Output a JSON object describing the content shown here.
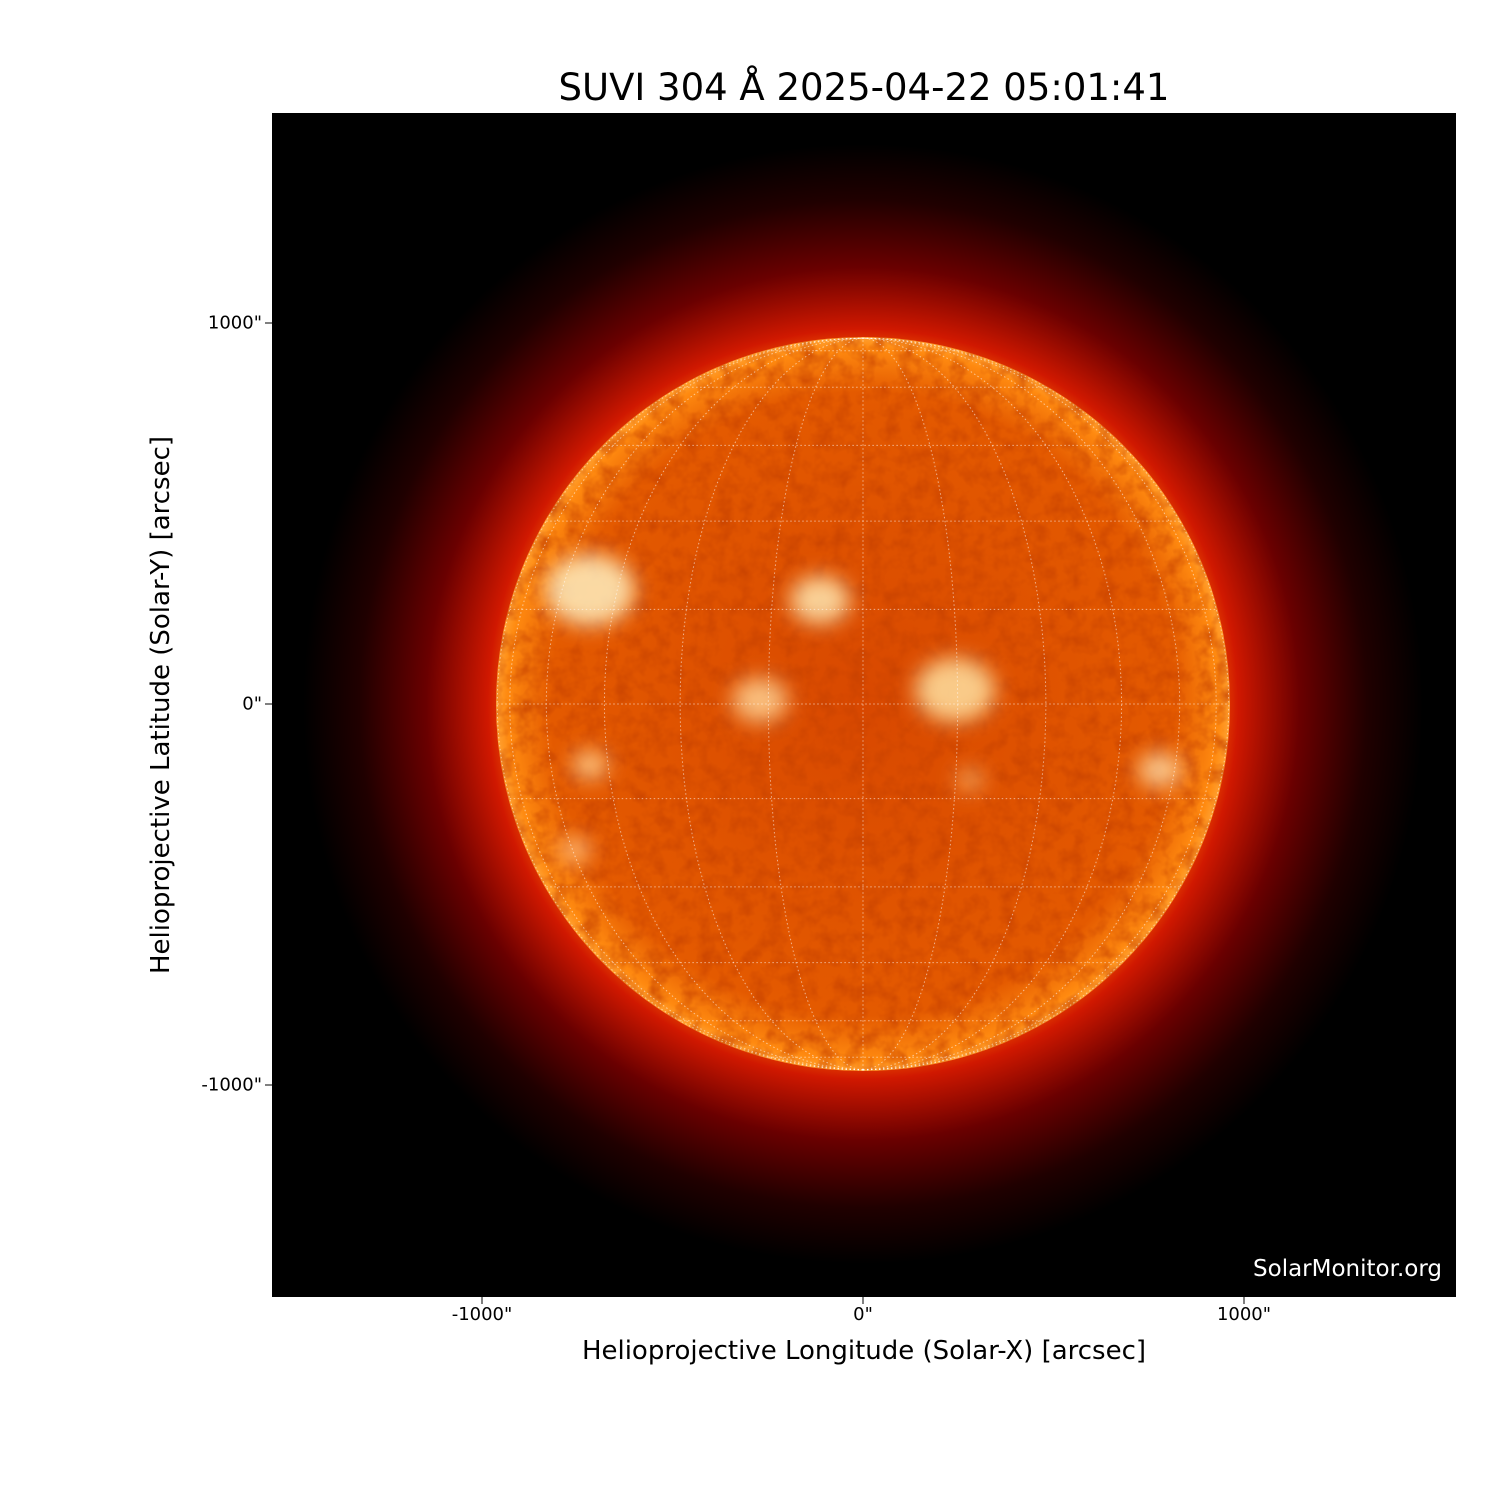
{
  "title": "SUVI 304 Å 2025-04-22 05:01:41",
  "credit": "SolarMonitor.org",
  "chart_data": {
    "type": "image",
    "title": "SUVI 304 Å 2025-04-22 05:01:41",
    "xlabel": "Helioprojective Longitude (Solar-X) [arcsec]",
    "ylabel": "Helioprojective Latitude (Solar-Y) [arcsec]",
    "xlim": [
      -1550,
      1550
    ],
    "ylim": [
      -1550,
      1550
    ],
    "xticks": [
      {
        "value": -1000,
        "label": "-1000\""
      },
      {
        "value": 0,
        "label": "0\""
      },
      {
        "value": 1000,
        "label": "1000\""
      }
    ],
    "yticks": [
      {
        "value": 1000,
        "label": "1000\""
      },
      {
        "value": 0,
        "label": "0\""
      },
      {
        "value": -1000,
        "label": "-1000\""
      }
    ],
    "solar_radius_arcsec": 960,
    "grid_spacing_deg": 15,
    "colormap": "sdoaia304",
    "colors": {
      "background": "#000000",
      "disk": "#e85a00",
      "bright": "#fff2d0",
      "corona": "#c00000"
    }
  }
}
